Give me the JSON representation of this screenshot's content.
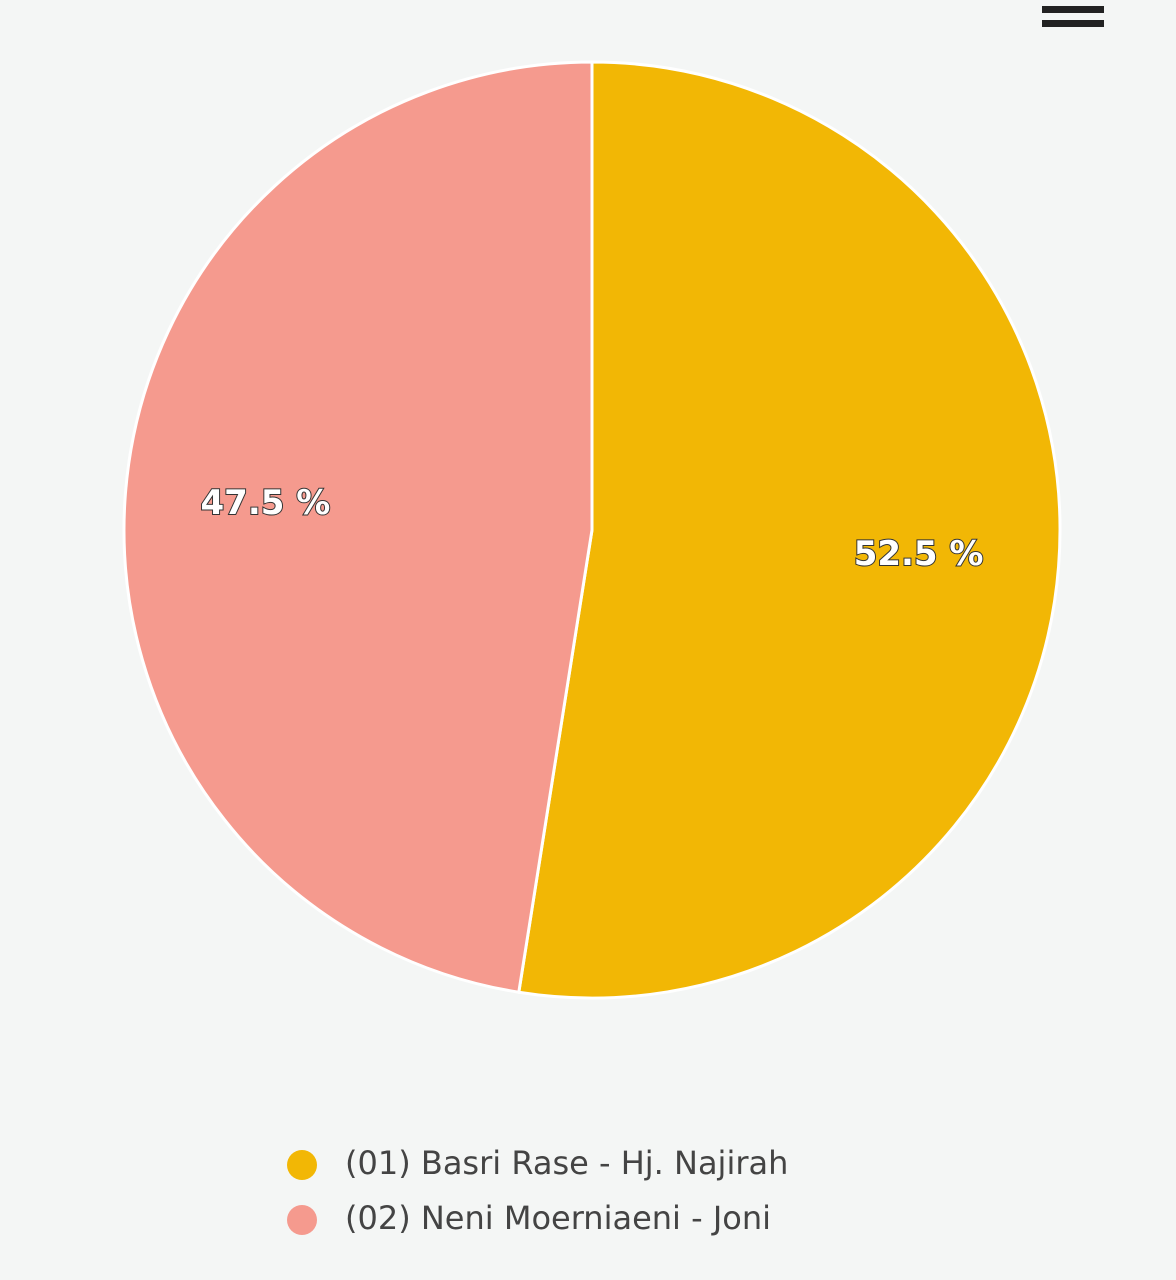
{
  "chart_data": {
    "type": "pie",
    "categories": [
      "(01) Basri Rase - Hj. Najirah",
      "(02) Neni Moerniaeni - Joni"
    ],
    "values": [
      52.5,
      47.5
    ],
    "value_labels": [
      "52.5 %",
      "47.5 %"
    ],
    "colors": [
      "#f2b705",
      "#f59a8e"
    ],
    "legend": "bottom"
  }
}
